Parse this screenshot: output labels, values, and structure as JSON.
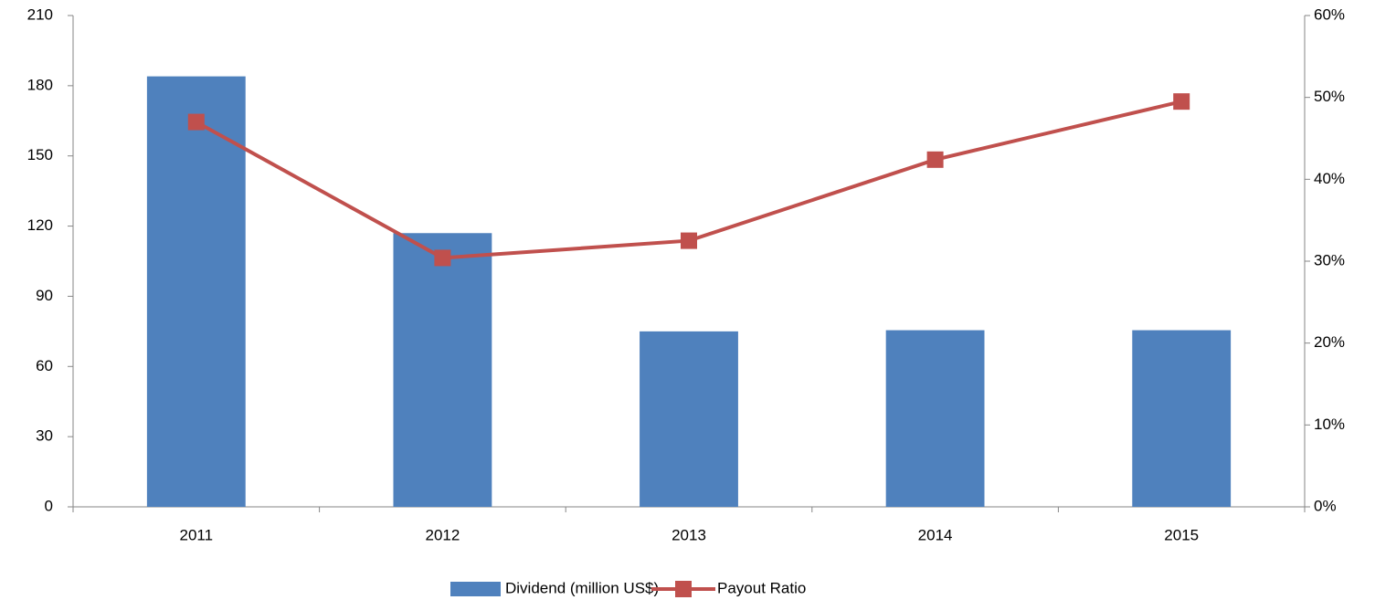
{
  "chart_data": {
    "type": "bar_line",
    "categories": [
      "2011",
      "2012",
      "2013",
      "2014",
      "2015"
    ],
    "series": [
      {
        "name": "Dividend (million US$)",
        "color": "#4f81bd",
        "type": "bar",
        "values": [
          184,
          117,
          75,
          75.5,
          75.5
        ]
      },
      {
        "name": "Payout Ratio",
        "color": "#c0504d",
        "type": "line",
        "axis": "y2",
        "values": [
          47,
          30.4,
          32.5,
          42.4,
          49.5
        ]
      }
    ],
    "ylim": [
      0,
      210
    ],
    "yticks": [
      0,
      30,
      60,
      90,
      120,
      150,
      180,
      210
    ],
    "y2lim": [
      0,
      60
    ],
    "y2ticks": [
      {
        "value": 0,
        "label": "0%"
      },
      {
        "value": 10,
        "label": "10%"
      },
      {
        "value": 20,
        "label": "20%"
      },
      {
        "value": 30,
        "label": "30%"
      },
      {
        "value": 40,
        "label": "40%"
      },
      {
        "value": 50,
        "label": "50%"
      },
      {
        "value": 60,
        "label": "60%"
      }
    ],
    "grid": false,
    "legend": "bottom"
  }
}
